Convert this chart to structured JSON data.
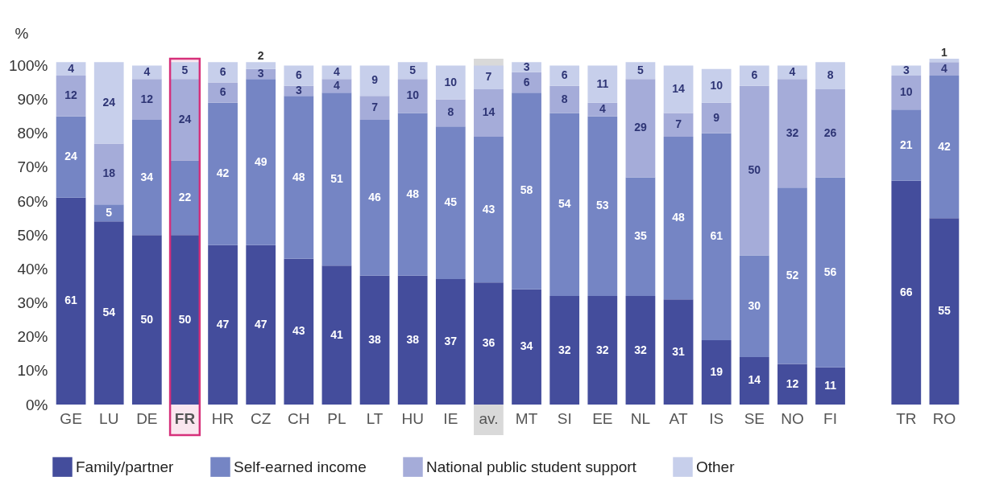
{
  "chart_data": {
    "type": "bar",
    "stacked": true,
    "ylabel": "%",
    "categories": [
      "GE",
      "LU",
      "DE",
      "FR",
      "HR",
      "CZ",
      "CH",
      "PL",
      "LT",
      "HU",
      "IE",
      "av.",
      "MT",
      "SI",
      "EE",
      "NL",
      "AT",
      "IS",
      "SE",
      "NO",
      "FI",
      null,
      "TR",
      "RO"
    ],
    "series": [
      {
        "name": "Family/partner",
        "color": "#444d9c",
        "values": [
          61,
          54,
          50,
          50,
          47,
          47,
          43,
          41,
          38,
          38,
          37,
          36,
          34,
          32,
          32,
          32,
          31,
          19,
          14,
          12,
          11,
          null,
          66,
          55
        ]
      },
      {
        "name": "Self-earned income",
        "color": "#7585c4",
        "values": [
          24,
          5,
          34,
          22,
          42,
          49,
          48,
          51,
          46,
          48,
          45,
          43,
          58,
          54,
          53,
          35,
          48,
          61,
          30,
          52,
          56,
          null,
          21,
          42
        ]
      },
      {
        "name": "National public student support",
        "color": "#a5acd9",
        "values": [
          12,
          18,
          12,
          24,
          6,
          3,
          3,
          4,
          7,
          10,
          8,
          14,
          6,
          8,
          4,
          29,
          7,
          9,
          50,
          32,
          26,
          null,
          10,
          4
        ]
      },
      {
        "name": "Other",
        "color": "#c7cfeb",
        "values": [
          4,
          24,
          4,
          5,
          6,
          2,
          6,
          4,
          9,
          5,
          10,
          7,
          3,
          6,
          11,
          5,
          14,
          10,
          6,
          4,
          8,
          null,
          3,
          1
        ]
      }
    ],
    "ylim": [
      0,
      102
    ],
    "yticks": [
      {
        "value": 0,
        "label": "0%"
      },
      {
        "value": 10,
        "label": "10%"
      },
      {
        "value": 20,
        "label": "20%"
      },
      {
        "value": 30,
        "label": "30%"
      },
      {
        "value": 40,
        "label": "40%"
      },
      {
        "value": 50,
        "label": "50%"
      },
      {
        "value": 60,
        "label": "60%"
      },
      {
        "value": 70,
        "label": "70%"
      },
      {
        "value": 80,
        "label": "80%"
      },
      {
        "value": 90,
        "label": "90%"
      },
      {
        "value": 100,
        "label": "100%"
      }
    ],
    "bands": [
      {
        "axis": "x",
        "from": "av.",
        "to": "av.",
        "color": "#d9d9d9"
      },
      {
        "axis": "x",
        "from": "FR",
        "to": "FR",
        "color": "#d6307a"
      }
    ],
    "data_labels": true,
    "legend": "bottom",
    "grid": false
  }
}
